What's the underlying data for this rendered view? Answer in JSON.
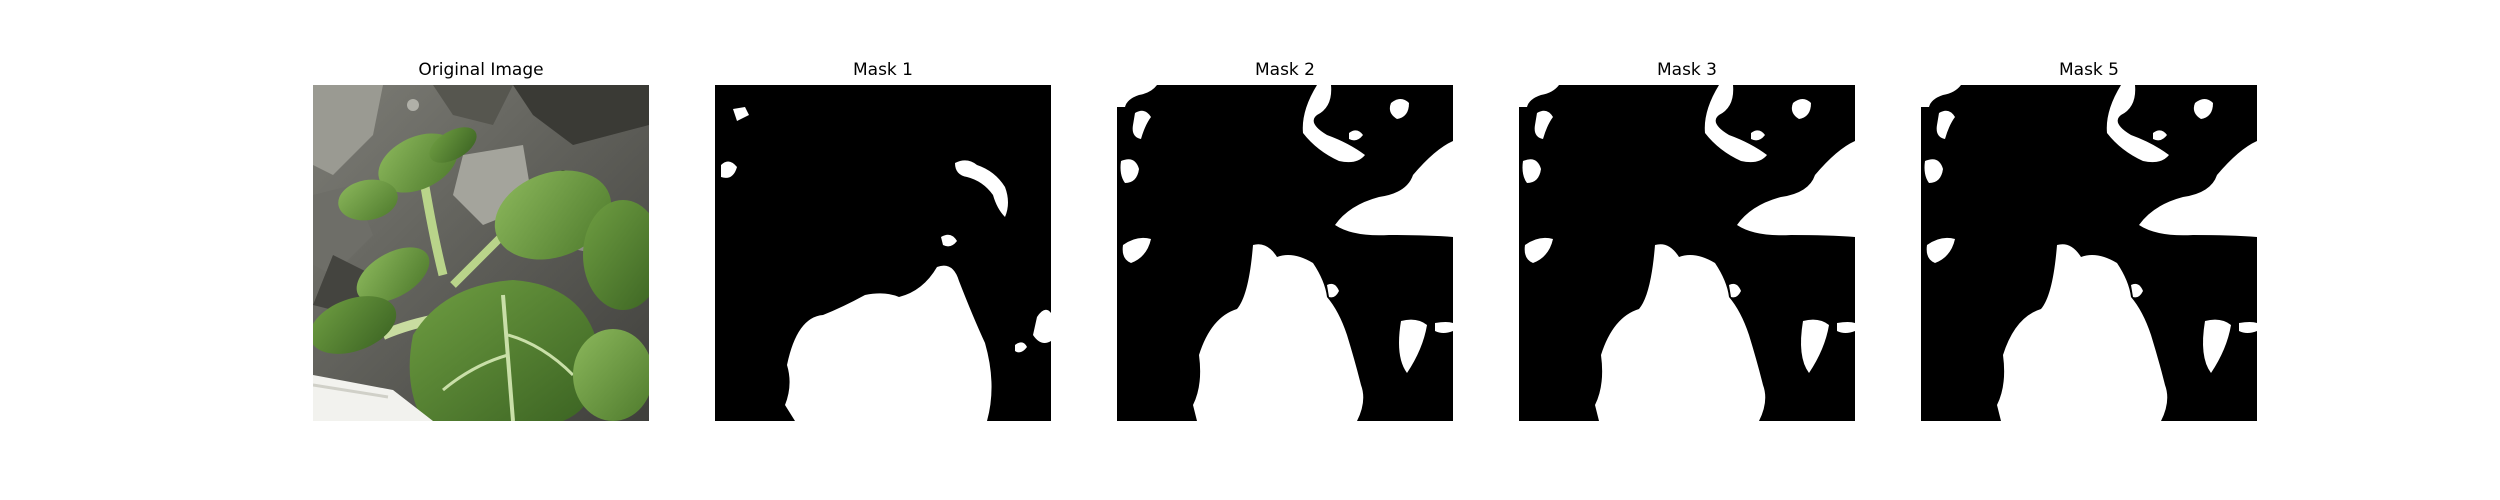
{
  "panels": [
    {
      "title": "Original Image",
      "image": "photo of green leafy plant (pak choi) against grey rocky soil"
    },
    {
      "title": "Mask 1",
      "image": "binary segmentation mask"
    },
    {
      "title": "Mask 2",
      "image": "binary segmentation mask"
    },
    {
      "title": "Mask 3",
      "image": "binary segmentation mask"
    },
    {
      "title": "Mask 5",
      "image": "binary segmentation mask"
    }
  ],
  "colors": {
    "background": "#ffffff",
    "mask_background": "#000000",
    "mask_foreground": "#ffffff",
    "leaf_green": "#5f8f3a",
    "soil_grey": "#5a5a55"
  }
}
